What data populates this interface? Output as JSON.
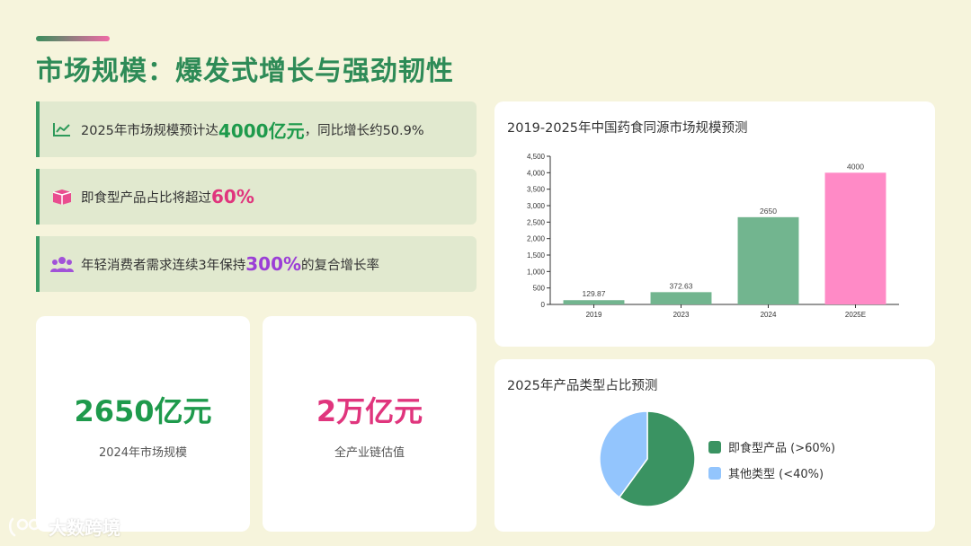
{
  "page": {
    "title": "市场规模：爆发式增长与强劲韧性"
  },
  "stats": [
    {
      "icon": "line-chart-icon",
      "prefix": "2025年市场规模预计达",
      "highlight": "4000亿元",
      "suffix": "，同比增长约50.9%",
      "color": "#1e9a4c"
    },
    {
      "icon": "box-icon",
      "prefix": "即食型产品占比将超过",
      "highlight": "60%",
      "suffix": "",
      "color": "#e0357d"
    },
    {
      "icon": "users-icon",
      "prefix": "年轻消费者需求连续3年保持",
      "highlight": "300%",
      "suffix": "的复合增长率",
      "color": "#9b3fd6"
    }
  ],
  "kpis": [
    {
      "value": "2650亿元",
      "label": "2024年市场规模",
      "color": "#1e9a4c"
    },
    {
      "value": "2万亿元",
      "label": "全产业链估值",
      "color": "#e0357d"
    }
  ],
  "watermark": {
    "text": "大数跨境"
  },
  "chart_data": [
    {
      "type": "bar",
      "title": "2019-2025年中国药食同源市场规模预测",
      "categories": [
        "2019",
        "2023",
        "2024",
        "2025E"
      ],
      "values": [
        129.87,
        372.63,
        2650,
        4000
      ],
      "data_labels": [
        "129.87",
        "372.63",
        "2650",
        "4000"
      ],
      "colors": [
        "#72b58f",
        "#72b58f",
        "#72b58f",
        "#ff8ac6"
      ],
      "ylim": [
        0,
        4500
      ],
      "yticks": [
        0,
        500,
        1000,
        1500,
        2000,
        2500,
        3000,
        3500,
        4000,
        4500
      ],
      "ytick_labels": [
        "0",
        "500",
        "1,000",
        "1,500",
        "2,000",
        "2,500",
        "3,000",
        "3,500",
        "4,000",
        "4,500"
      ],
      "xlabel": "",
      "ylabel": "",
      "grid": false
    },
    {
      "type": "pie",
      "title": "2025年产品类型占比预测",
      "labels": [
        "即食型产品 (>60%)",
        "其他类型 (<40%)"
      ],
      "values": [
        60,
        40
      ],
      "colors": [
        "#3a9362",
        "#93c5fd"
      ],
      "legend_position": "right"
    }
  ]
}
